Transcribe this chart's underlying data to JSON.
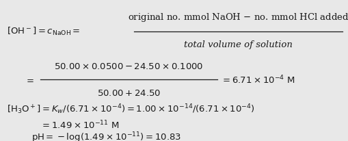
{
  "background_color": "#e8e8e8",
  "text_color": "#1a1a1a",
  "figsize": [
    5.09,
    2.07
  ],
  "dpi": 100,
  "fs": 9.5,
  "line1_lhs": "$[\\mathrm{OH}^-] = c_{\\mathrm{NaOH}} =$",
  "line1_num": "original no. mmol NaOH $-$ no. mmol HCl added",
  "line1_den": "total volume of solution",
  "line2_lhs": "$=$",
  "line2_num": "$50.00 \\times 0.0500 - 24.50 \\times 0.1000$",
  "line2_den": "$50.00 + 24.50$",
  "line2_rhs": "$= 6.71 \\times 10^{-4}\\ \\mathrm{M}$",
  "line3": "$[\\mathrm{H_3O^+}] = K_w/(6.71 \\times 10^{-4}) = 1.00 \\times 10^{-14}/(6.71 \\times 10^{-4})$",
  "line4": "$= 1.49 \\times 10^{-11}\\ \\mathrm{M}$",
  "line5": "$\\mathrm{pH} = -\\log(1.49 \\times 10^{-11}) = 10.83$"
}
